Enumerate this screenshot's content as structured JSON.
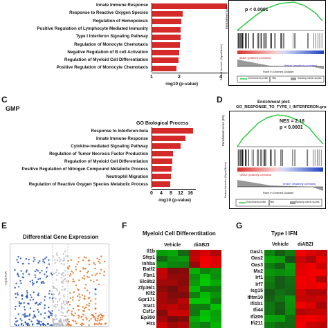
{
  "panels": {
    "A": {
      "terms": [
        "Innate Immune Response",
        "Response to Reactive Oxygen Species",
        "Regulation of Hemopoiesis",
        "Positive Regulation of Lymphocyte Mediated Immunity",
        "Type I Interferon Signaling Pathway",
        "Regulation of Monocyte Chemotaxis",
        "Negative Regulation of B cell Activation",
        "Regulation of Myeloid Cell Differentiation",
        "Positive Regulation of Monocyte Chemotaxis"
      ],
      "values": [
        5.6,
        2.3,
        2.2,
        2.1,
        2.1,
        2.05,
        2.0,
        1.95,
        1.8
      ],
      "ticks": [
        "1",
        "2",
        "4"
      ],
      "xlabel": "-log10 (p-value)"
    },
    "B": {
      "pvalue": "p < 0.0001",
      "ylabel_es": "Enrichment score",
      "ylabel_rank": "Ranked list metric (Signal2Noise)",
      "xlabel": "Rank in Ordered Dataset",
      "pos_label": "'diABZI' (positively correlated)",
      "neg_label": "'Vehicle' (negatively correlated)",
      "legend": [
        "Enrichment profile",
        "Hits",
        "Ranking metric scores"
      ]
    },
    "C": {
      "letter": "C",
      "label": "GMP",
      "title": "GO Biological Process",
      "terms": [
        "Response to Interferon-beta",
        "Innate Immune Response",
        "Cytokine-mediated Signaling Pathway",
        "Regulation of Tumor Necrosis Factor Production",
        "Regulation of Myeloid Cell Differentiation",
        "Positive Regulation of Nitrogen Compound Metabolic Process",
        "Neutrophil Migration",
        "Regulation of Reactive Oxygen Species Metabolic Process"
      ],
      "values": [
        16.5,
        13.5,
        11.5,
        8.5,
        8.2,
        7.8,
        7.5,
        7.2
      ],
      "ticks": [
        "0",
        "4",
        "8",
        "12",
        "16"
      ],
      "xlabel": "-log10 (p-value)"
    },
    "D": {
      "letter": "D",
      "title1": "Enrichment plot:",
      "title2": "GO_RESPONSE_TO_TYPE_I_INTERFERON.grp",
      "nes": "NES = 2.16",
      "pvalue": "p < 0.0001",
      "ylabel_es": "Enrichment score (ES)",
      "ylabel_rank": "Ranked list metric (Signal2Noise)",
      "xlabel": "Rank in Ordered Dataset",
      "pos_label": "'diABZI' (positively correlated)",
      "neg_label": "'Vehicle' (negatively correlated)",
      "legend": [
        "Enrichment profile",
        "Hits",
        "Ranking metric scores"
      ]
    },
    "E": {
      "letter": "E",
      "title": "Differential Gene Expression",
      "ylabel": "-log10 FDR"
    },
    "F": {
      "letter": "F",
      "title": "Myeloid Cell Differentitation",
      "col_labels": [
        "Vehicle",
        "diABZI"
      ],
      "genes": [
        "Il1b",
        "Sfrp1",
        "Inhba",
        "Batf2",
        "Fbn1",
        "Slc9b2",
        "Zfp36l1",
        "Klf2",
        "Gpr171",
        "Stat1",
        "Csf1r",
        "Ep300",
        "Flt3"
      ]
    },
    "G": {
      "letter": "G",
      "title": "Type I IFN",
      "col_labels": [
        "Vehicle",
        "diABZI"
      ],
      "genes": [
        "Oasl1",
        "Oas2",
        "Oas3",
        "Mx2",
        "Irf1",
        "Irf7",
        "Isg15",
        "Ifitm10",
        "Ifi1b1",
        "Ifi44",
        "Ifi206",
        "Ifi211"
      ]
    }
  },
  "colors": {
    "bar": "#d42a2a",
    "heat_red": "#e01818",
    "heat_green": "#1fc21f",
    "volcano_blue": "#1d4fb0",
    "volcano_orange": "#e06b18",
    "gsea_green": "#2ecc40"
  }
}
